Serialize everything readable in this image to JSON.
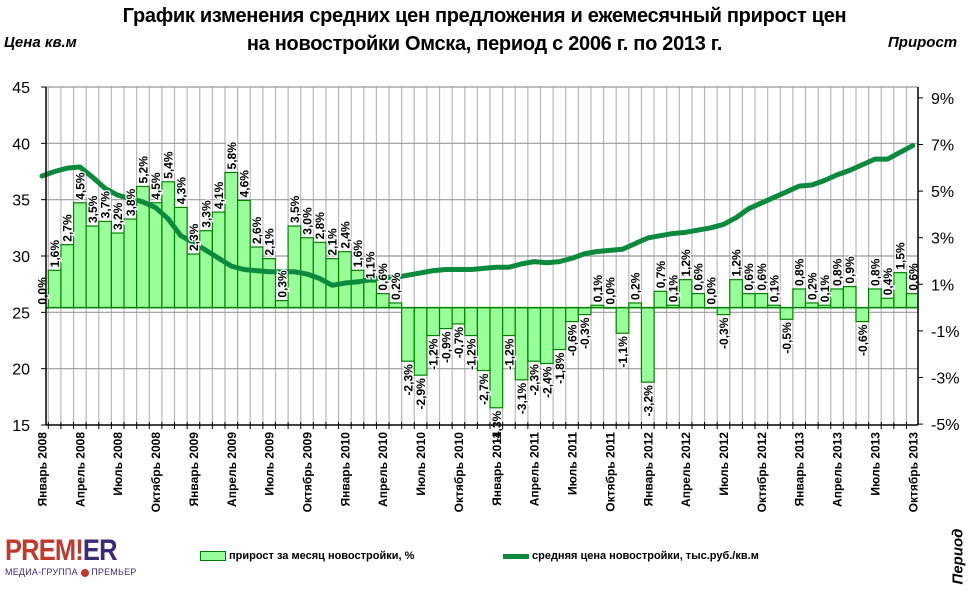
{
  "chart_data": {
    "type": "bar+line",
    "title": [
      "График изменения средних цен предложения и  ежемесячный прирост цен",
      "на новостройки Омска,  период с 2006 г. по 2013 г."
    ],
    "ylabel_left": "Цена кв.м",
    "ylabel_right": "Прирост",
    "xlabel": "Период",
    "ylim_left": [
      15,
      45
    ],
    "yticks_left": [
      "15",
      "20",
      "25",
      "30",
      "35",
      "40",
      "45"
    ],
    "ylim_right": [
      -5,
      9
    ],
    "yticks_right": [
      "-5%",
      "-3%",
      "-1%",
      "1%",
      "3%",
      "5%",
      "7%",
      "9%"
    ],
    "grid": true,
    "legend_position": "bottom",
    "x_tick_labels": [
      "Январь 2008",
      "Апрель 2008",
      "Июль 2008",
      "Октябрь 2008",
      "Январь 2009",
      "Апрель 2009",
      "Июль 2009",
      "Октябрь 2009",
      "Январь 2010",
      "Апрель 2010",
      "Июль 2010",
      "Октябрь 2010",
      "Январь 2011",
      "Апрель 2011",
      "Июль 2011",
      "Октябрь 2011",
      "Январь 2012",
      "Апрель 2012",
      "Июль 2012",
      "Октябрь 2012",
      "Январь 2013",
      "Апрель 2013",
      "Июль 2013",
      "Октябрь 2013"
    ],
    "series": [
      {
        "name": "прирост за месяц новостройки, %",
        "type": "bar",
        "axis": "right",
        "color": "#99ff99",
        "edge_color": "#008000",
        "values": [
          0.0,
          1.6,
          2.7,
          4.5,
          3.5,
          3.7,
          3.2,
          3.8,
          5.2,
          4.5,
          5.4,
          4.3,
          2.3,
          3.3,
          4.1,
          5.8,
          4.6,
          2.6,
          2.1,
          0.3,
          3.5,
          3.0,
          2.8,
          2.1,
          2.4,
          1.6,
          1.1,
          0.6,
          0.2,
          -2.3,
          -2.9,
          -1.2,
          -0.9,
          -0.7,
          -1.2,
          -2.7,
          -4.3,
          -1.2,
          -3.1,
          -2.3,
          -2.4,
          -1.8,
          -0.6,
          -0.3,
          0.1,
          0.0,
          -1.1,
          0.2,
          -3.2,
          0.7,
          0.1,
          1.2,
          0.6,
          0.0,
          -0.3,
          1.2,
          0.6,
          0.6,
          0.1,
          -0.5,
          0.8,
          0.2,
          0.1,
          0.8,
          0.9,
          -0.6,
          0.8,
          0.4,
          1.5,
          0.6
        ],
        "labels": [
          "0,0%",
          "1,6%",
          "2,7%",
          "4,5%",
          "3,5%",
          "3,7%",
          "3,2%",
          "3,8%",
          "5,2%",
          "4,5%",
          "5,4%",
          "4,3%",
          "2,3%",
          "3,3%",
          "4,1%",
          "5,8%",
          "4,6%",
          "2,6%",
          "2,1%",
          "0,3%",
          "3,5%",
          "3,0%",
          "2,8%",
          "2,1%",
          "2,4%",
          "1,6%",
          "1,1%",
          "0,6%",
          "0,2%",
          "-2,3%",
          "-2,9%",
          "-1,2%",
          "-0,9%",
          "-0,7%",
          "-1,2%",
          "-2,7%",
          "-4,3%",
          "-1,2%",
          "-3,1%",
          "-2,3%",
          "-2,4%",
          "-1,8%",
          "-0,6%",
          "-0,3%",
          "0,1%",
          "0,0%",
          "-1,1%",
          "0,2%",
          "-3,2%",
          "0,7%",
          "0,1%",
          "1,2%",
          "0,6%",
          "0,0%",
          "-0,3%",
          "1,2%",
          "0,6%",
          "0,6%",
          "0,1%",
          "-0,5%",
          "0,8%",
          "0,2%",
          "0,1%",
          "0,8%",
          "0,9%",
          "-0,6%",
          "0,8%",
          "0,4%",
          "1,5%",
          "0,6%"
        ]
      },
      {
        "name": "средняя цена новостройки, тыс.руб./кв.м",
        "type": "line",
        "axis": "left",
        "color": "#0b8a3e",
        "values": [
          37.1,
          37.5,
          37.8,
          37.9,
          37.0,
          36.0,
          35.4,
          35.1,
          34.8,
          34.3,
          33.3,
          31.8,
          31.2,
          30.5,
          29.8,
          29.1,
          28.8,
          28.7,
          28.6,
          28.6,
          28.6,
          28.4,
          28.0,
          27.4,
          27.6,
          27.7,
          27.9,
          28.1,
          28.1,
          28.3,
          28.5,
          28.7,
          28.8,
          28.8,
          28.8,
          28.9,
          29.0,
          29.0,
          29.3,
          29.5,
          29.4,
          29.5,
          29.8,
          30.2,
          30.4,
          30.5,
          30.6,
          31.1,
          31.6,
          31.8,
          32.0,
          32.1,
          32.3,
          32.5,
          32.8,
          33.4,
          34.2,
          34.7,
          35.2,
          35.7,
          36.2,
          36.3,
          36.7,
          37.2,
          37.6,
          38.1,
          38.6,
          38.6,
          39.2,
          39.8
        ]
      }
    ]
  },
  "logo": {
    "text_red": "PREM",
    "text_bang": "!",
    "text_purple": "ER",
    "subtitle_left": "МЕДИА-ГРУППА",
    "subtitle_right": "ПРЕМЬЕР"
  }
}
